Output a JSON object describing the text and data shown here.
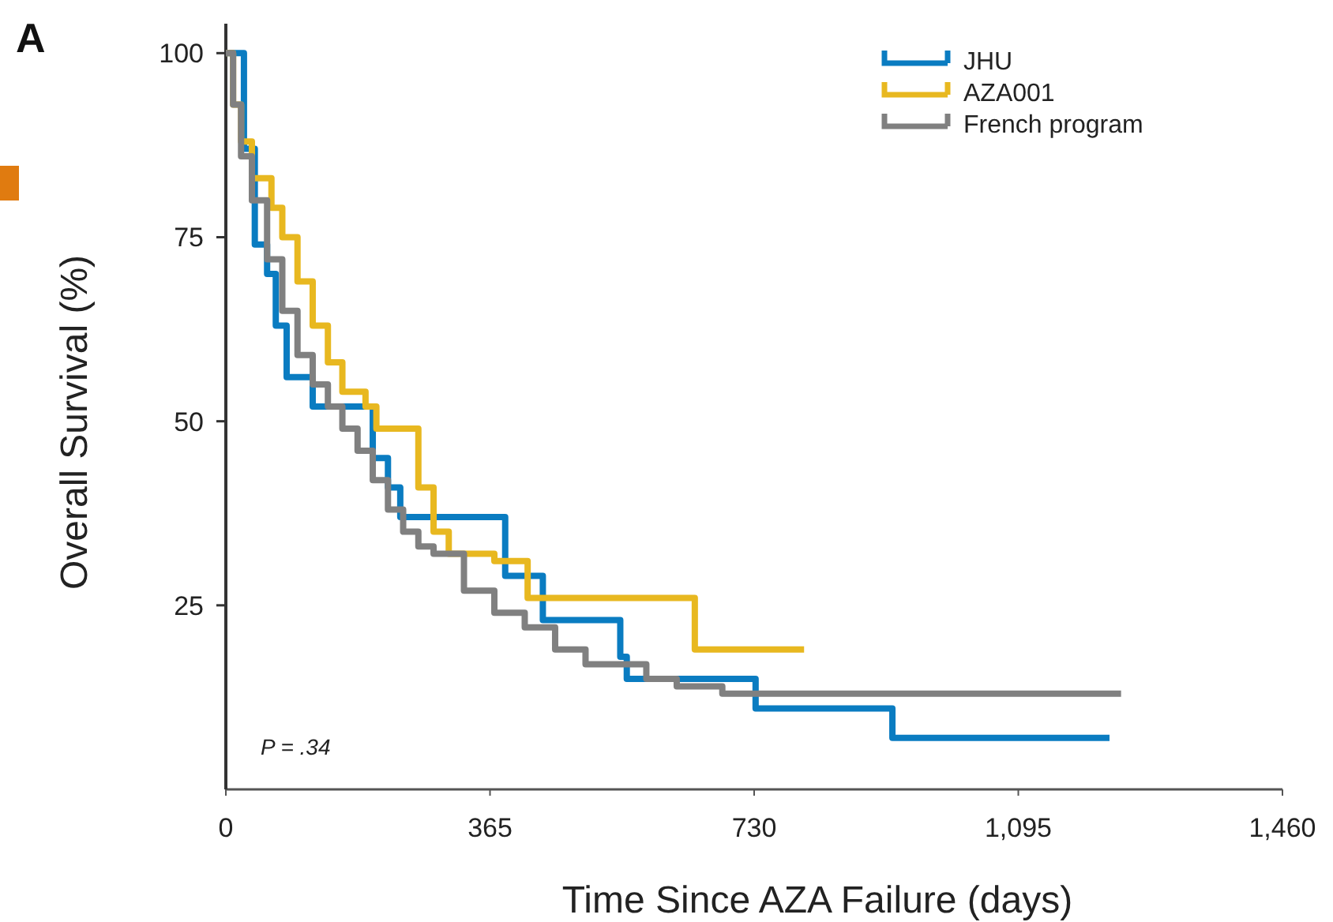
{
  "chart_data": {
    "type": "step",
    "xlabel": "Time Since AZA Failure (days)",
    "ylabel": "Overall Survival (%)",
    "xlim": [
      0,
      1460
    ],
    "xticks": [
      0,
      365,
      730,
      {
        "value": 1095,
        "label": "1,095"
      },
      {
        "value": 1460,
        "label": "1,460"
      }
    ],
    "ylim": [
      0,
      104
    ],
    "yticks": [
      25,
      50,
      75,
      100
    ],
    "grid": false,
    "legend": "top right",
    "line_style": "solid",
    "marker": "none",
    "annotations": [
      "A",
      "P = .34"
    ],
    "series": [
      {
        "name": "JHU",
        "color": "#0a7cc1",
        "x": [
          0,
          25,
          40,
          57,
          69,
          84,
          120,
          203,
          224,
          241,
          386,
          438,
          545,
          554,
          732,
          921,
          1221
        ],
        "values": [
          100,
          87,
          74,
          70,
          63,
          56,
          52,
          45,
          41,
          37,
          29,
          23,
          18,
          15,
          11,
          7,
          7
        ]
      },
      {
        "name": "AZA001",
        "color": "#e8b820",
        "x": [
          0,
          10,
          21,
          36,
          63,
          78,
          99,
          120,
          141,
          161,
          193,
          208,
          266,
          287,
          308,
          371,
          417,
          648,
          799
        ],
        "values": [
          100,
          93,
          88,
          83,
          79,
          75,
          69,
          63,
          58,
          54,
          52,
          49,
          41,
          35,
          32,
          31,
          26,
          19,
          19
        ]
      },
      {
        "name": "French program",
        "color": "#808080",
        "x": [
          0,
          10,
          21,
          36,
          57,
          78,
          99,
          120,
          141,
          161,
          182,
          203,
          224,
          245,
          266,
          287,
          329,
          371,
          413,
          455,
          497,
          581,
          623,
          686,
          1237
        ],
        "values": [
          100,
          93,
          86,
          80,
          72,
          65,
          59,
          55,
          52,
          49,
          46,
          42,
          38,
          35,
          33,
          32,
          27,
          24,
          22,
          19,
          17,
          15,
          14,
          13,
          13
        ]
      }
    ]
  }
}
